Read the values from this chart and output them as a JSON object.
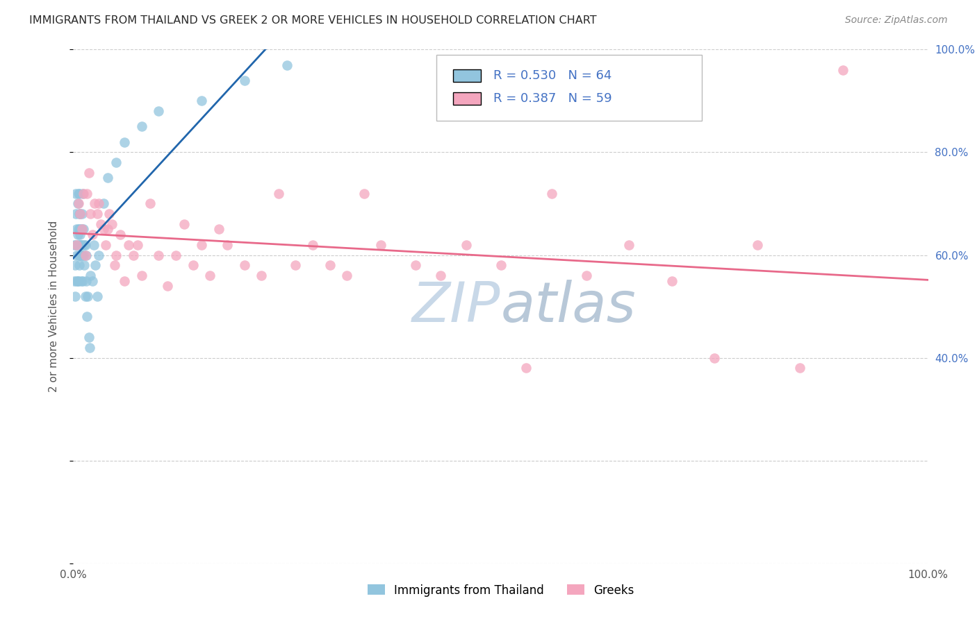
{
  "title": "IMMIGRANTS FROM THAILAND VS GREEK 2 OR MORE VEHICLES IN HOUSEHOLD CORRELATION CHART",
  "source": "Source: ZipAtlas.com",
  "ylabel": "2 or more Vehicles in Household",
  "xlim": [
    0.0,
    1.0
  ],
  "ylim": [
    0.0,
    1.0
  ],
  "R1": 0.53,
  "N1": 64,
  "R2": 0.387,
  "N2": 59,
  "color1": "#92c5de",
  "color2": "#f4a6be",
  "trendline1_color": "#2166ac",
  "trendline2_color": "#e8698a",
  "legend_label1": "Immigrants from Thailand",
  "legend_label2": "Greeks",
  "background_color": "#ffffff",
  "grid_color": "#cccccc",
  "watermark_color": "#dce8f0",
  "right_tick_color": "#4472c4",
  "thailand_x": [
    0.001,
    0.001,
    0.002,
    0.002,
    0.003,
    0.003,
    0.003,
    0.004,
    0.004,
    0.004,
    0.005,
    0.005,
    0.005,
    0.005,
    0.006,
    0.006,
    0.006,
    0.006,
    0.007,
    0.007,
    0.007,
    0.007,
    0.007,
    0.008,
    0.008,
    0.008,
    0.008,
    0.009,
    0.009,
    0.009,
    0.009,
    0.01,
    0.01,
    0.01,
    0.01,
    0.011,
    0.011,
    0.012,
    0.012,
    0.013,
    0.013,
    0.014,
    0.014,
    0.015,
    0.015,
    0.016,
    0.017,
    0.018,
    0.019,
    0.02,
    0.022,
    0.024,
    0.026,
    0.028,
    0.03,
    0.035,
    0.04,
    0.05,
    0.06,
    0.08,
    0.1,
    0.15,
    0.2,
    0.25
  ],
  "thailand_y": [
    0.62,
    0.55,
    0.58,
    0.52,
    0.62,
    0.68,
    0.72,
    0.6,
    0.65,
    0.55,
    0.62,
    0.64,
    0.55,
    0.7,
    0.6,
    0.72,
    0.55,
    0.65,
    0.62,
    0.68,
    0.58,
    0.65,
    0.72,
    0.6,
    0.62,
    0.64,
    0.68,
    0.6,
    0.62,
    0.65,
    0.55,
    0.62,
    0.6,
    0.65,
    0.68,
    0.55,
    0.72,
    0.6,
    0.65,
    0.58,
    0.62,
    0.52,
    0.62,
    0.55,
    0.6,
    0.48,
    0.52,
    0.44,
    0.42,
    0.56,
    0.55,
    0.62,
    0.58,
    0.52,
    0.6,
    0.7,
    0.75,
    0.78,
    0.82,
    0.85,
    0.88,
    0.9,
    0.94,
    0.97
  ],
  "greek_x": [
    0.004,
    0.006,
    0.008,
    0.01,
    0.012,
    0.014,
    0.016,
    0.018,
    0.02,
    0.022,
    0.025,
    0.028,
    0.03,
    0.032,
    0.035,
    0.038,
    0.04,
    0.042,
    0.045,
    0.048,
    0.05,
    0.055,
    0.06,
    0.065,
    0.07,
    0.075,
    0.08,
    0.09,
    0.1,
    0.11,
    0.12,
    0.13,
    0.14,
    0.15,
    0.16,
    0.17,
    0.18,
    0.2,
    0.22,
    0.24,
    0.26,
    0.28,
    0.3,
    0.32,
    0.34,
    0.36,
    0.4,
    0.43,
    0.46,
    0.5,
    0.53,
    0.56,
    0.6,
    0.65,
    0.7,
    0.75,
    0.8,
    0.85,
    0.9
  ],
  "greek_y": [
    0.62,
    0.7,
    0.68,
    0.65,
    0.72,
    0.6,
    0.72,
    0.76,
    0.68,
    0.64,
    0.7,
    0.68,
    0.7,
    0.66,
    0.65,
    0.62,
    0.65,
    0.68,
    0.66,
    0.58,
    0.6,
    0.64,
    0.55,
    0.62,
    0.6,
    0.62,
    0.56,
    0.7,
    0.6,
    0.54,
    0.6,
    0.66,
    0.58,
    0.62,
    0.56,
    0.65,
    0.62,
    0.58,
    0.56,
    0.72,
    0.58,
    0.62,
    0.58,
    0.56,
    0.72,
    0.62,
    0.58,
    0.56,
    0.62,
    0.58,
    0.38,
    0.72,
    0.56,
    0.62,
    0.55,
    0.4,
    0.62,
    0.38,
    0.96
  ]
}
